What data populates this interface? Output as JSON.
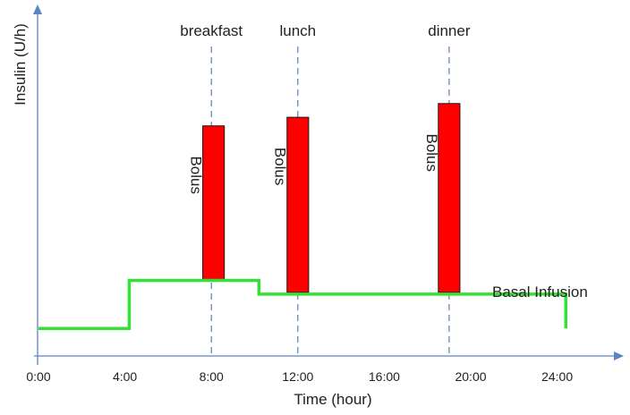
{
  "chart_data": {
    "type": "line",
    "title": "",
    "xlabel": "Time (hour)",
    "ylabel": "Insulin (U/h)",
    "x_ticks": [
      {
        "value": 0,
        "label": "0:00"
      },
      {
        "value": 4,
        "label": "4:00"
      },
      {
        "value": 8,
        "label": "8:00"
      },
      {
        "value": 12,
        "label": "12:00"
      },
      {
        "value": 16,
        "label": "16:00"
      },
      {
        "value": 20,
        "label": "20:00"
      },
      {
        "value": 24,
        "label": "24:00"
      }
    ],
    "xlim": [
      0,
      26.5
    ],
    "ylim": [
      0,
      10
    ],
    "basal": {
      "name": "Basal Infusion",
      "color": "#33e033",
      "points": [
        [
          0,
          0.8
        ],
        [
          4.2,
          0.8
        ],
        [
          4.2,
          2.2
        ],
        [
          10.2,
          2.2
        ],
        [
          10.2,
          1.8
        ],
        [
          24.4,
          1.8
        ],
        [
          24.4,
          0.8
        ]
      ]
    },
    "meals": [
      {
        "label": "breakfast",
        "time": 8.0
      },
      {
        "label": "lunch",
        "time": 12.0
      },
      {
        "label": "dinner",
        "time": 19.0
      }
    ],
    "boluses": [
      {
        "label": "Bolus",
        "x_start": 7.6,
        "x_end": 8.6,
        "y_low": 2.2,
        "y_high": 6.7
      },
      {
        "label": "Bolus",
        "x_start": 11.5,
        "x_end": 12.5,
        "y_low": 1.85,
        "y_high": 6.95
      },
      {
        "label": "Bolus",
        "x_start": 18.5,
        "x_end": 19.5,
        "y_low": 1.85,
        "y_high": 7.35
      }
    ],
    "bolus_color": "#ff0000",
    "grid": false,
    "legend": "none"
  }
}
